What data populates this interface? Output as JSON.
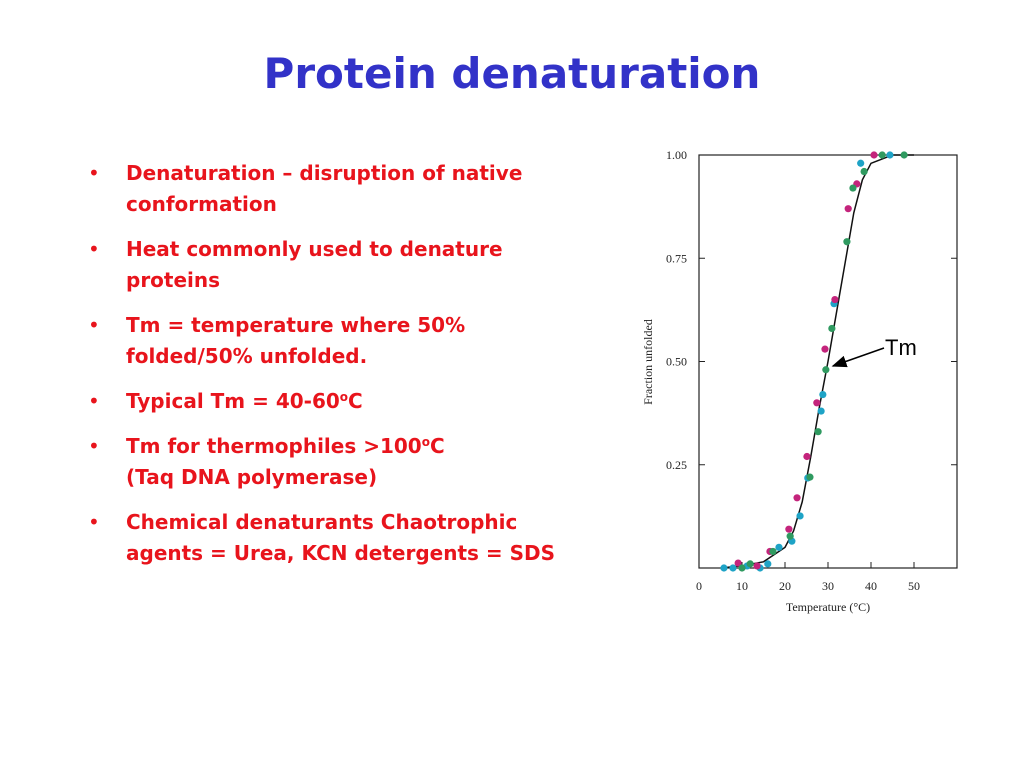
{
  "title": "Protein denaturation",
  "bullets": [
    [
      [
        "Denaturation – disruption of native"
      ],
      [
        "conformation"
      ]
    ],
    [
      [
        "Heat commonly used to denature"
      ],
      [
        "proteins"
      ]
    ],
    [
      [
        "Tm = temperature where 50%"
      ],
      [
        "folded/50% unfolded."
      ]
    ],
    [
      [
        "Typical Tm = 40-60",
        "o",
        "C"
      ]
    ],
    [
      [
        "Tm for thermophiles >100",
        "o",
        "C"
      ],
      [
        "(Taq DNA polymerase)"
      ]
    ],
    [
      [
        "Chemical denaturants Chaotrophic"
      ],
      [
        "agents = Urea, KCN detergents = SDS"
      ]
    ]
  ],
  "chart_data": {
    "type": "scatter",
    "x_label": "Temperature (°C)",
    "y_label": "Fraction unfolded",
    "annotation": "Tm",
    "xlim": [
      0,
      60
    ],
    "ylim": [
      0,
      1
    ],
    "xticks": [
      0,
      10,
      20,
      30,
      40,
      50
    ],
    "yticks": [
      0.25,
      {
        "value": 0.5,
        "label": "0.50"
      },
      0.75,
      {
        "value": 1,
        "label": "1.00"
      }
    ],
    "series": [
      {
        "type": "line",
        "color": "#111111",
        "x": [
          5,
          10,
          15,
          20,
          22,
          24,
          26,
          28,
          30,
          32,
          34,
          36,
          38,
          40,
          45,
          50
        ],
        "values": [
          0,
          0.005,
          0.015,
          0.05,
          0.09,
          0.16,
          0.27,
          0.39,
          0.5,
          0.62,
          0.74,
          0.86,
          0.94,
          0.98,
          1,
          1
        ]
      },
      {
        "color": "#1ea3c6",
        "x": [
          5.8,
          7.9,
          11.2,
          14.2,
          16,
          18.6,
          21.6,
          23.5,
          25.3,
          28.4,
          28.8,
          31.4,
          37.6,
          44.4
        ],
        "values": [
          0,
          0,
          0.005,
          0,
          0.01,
          0.05,
          0.065,
          0.126,
          0.218,
          0.38,
          0.42,
          0.64,
          0.98,
          1
        ]
      },
      {
        "color": "#c4247c",
        "x": [
          9.1,
          13.5,
          16.5,
          20.9,
          22.8,
          25.1,
          27.4,
          29.3,
          31.6,
          34.7,
          36.7,
          40.7
        ],
        "values": [
          0.012,
          0.005,
          0.04,
          0.094,
          0.17,
          0.27,
          0.4,
          0.53,
          0.65,
          0.87,
          0.93,
          1
        ]
      },
      {
        "color": "#2f9a60",
        "x": [
          10,
          11.9,
          17.2,
          21.2,
          25.8,
          27.7,
          29.5,
          30.9,
          34.4,
          35.8,
          38.4,
          42.6,
          47.7
        ],
        "values": [
          0,
          0.01,
          0.04,
          0.077,
          0.22,
          0.33,
          0.48,
          0.58,
          0.79,
          0.92,
          0.96,
          1,
          1
        ]
      }
    ]
  }
}
